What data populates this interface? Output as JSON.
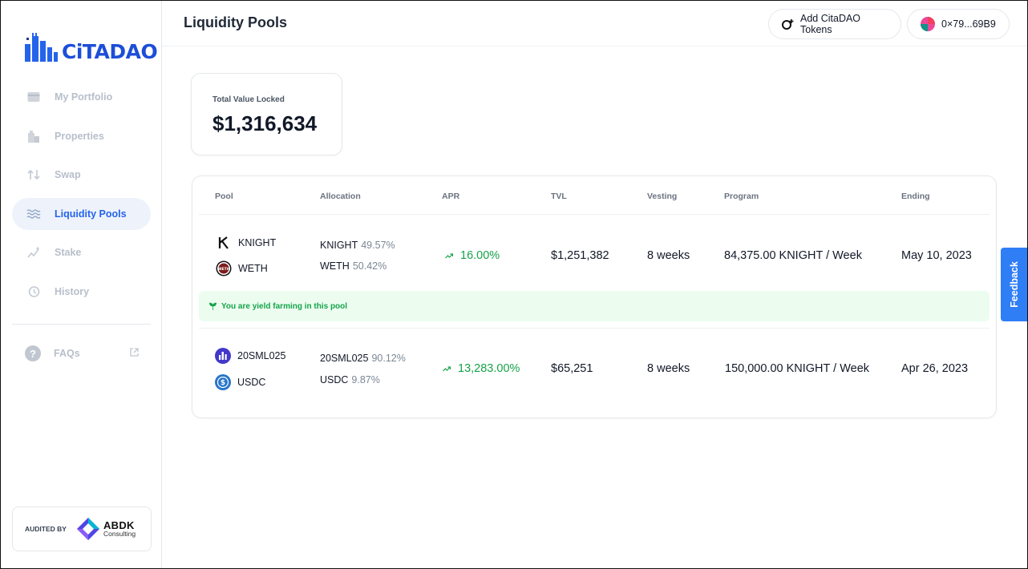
{
  "brand": {
    "name": "CiTADAO",
    "color": "#1d4ed8"
  },
  "sidebar": {
    "items": [
      {
        "label": "My Portfolio",
        "icon": "wallet-icon",
        "active": false
      },
      {
        "label": "Properties",
        "icon": "building-icon",
        "active": false
      },
      {
        "label": "Swap",
        "icon": "swap-icon",
        "active": false
      },
      {
        "label": "Liquidity Pools",
        "icon": "waves-icon",
        "active": true
      },
      {
        "label": "Stake",
        "icon": "stake-icon",
        "active": false
      },
      {
        "label": "History",
        "icon": "history-icon",
        "active": false
      }
    ],
    "faq": {
      "label": "FAQs",
      "icon": "question-icon",
      "external_icon": "external-link-icon"
    },
    "audit": {
      "label": "AUDITED BY",
      "company": "ABDK",
      "company_sub": "Consulting"
    }
  },
  "header": {
    "title": "Liquidity Pools",
    "add_tokens_label": "Add CitaDAO Tokens",
    "wallet_address": "0×79...69B9"
  },
  "summary": {
    "tvl_label": "Total Value Locked",
    "tvl_value": "$1,316,634"
  },
  "table": {
    "headers": {
      "pool": "Pool",
      "allocation": "Allocation",
      "apr": "APR",
      "tvl": "TVL",
      "vesting": "Vesting",
      "program": "Program",
      "ending": "Ending"
    },
    "rows": [
      {
        "token_a": "KNIGHT",
        "token_b": "WETH",
        "alloc_a_name": "KNIGHT",
        "alloc_a_pct": "49.57%",
        "alloc_b_name": "WETH",
        "alloc_b_pct": "50.42%",
        "apr": "16.00%",
        "tvl": "$1,251,382",
        "vesting": "8 weeks",
        "program": "84,375.00 KNIGHT / Week",
        "ending": "May 10, 2023",
        "farming_message": "You are yield farming in this pool"
      },
      {
        "token_a": "20SML025",
        "token_b": "USDC",
        "alloc_a_name": "20SML025",
        "alloc_a_pct": "90.12%",
        "alloc_b_name": "USDC",
        "alloc_b_pct": "9.87%",
        "apr": "13,283.00%",
        "tvl": "$65,251",
        "vesting": "8 weeks",
        "program": "150,000.00 KNIGHT / Week",
        "ending": "Apr 26, 2023"
      }
    ]
  },
  "feedback_label": "Feedback",
  "colors": {
    "accent": "#2563eb",
    "success": "#16a34a",
    "feedback": "#2f7ef5"
  }
}
